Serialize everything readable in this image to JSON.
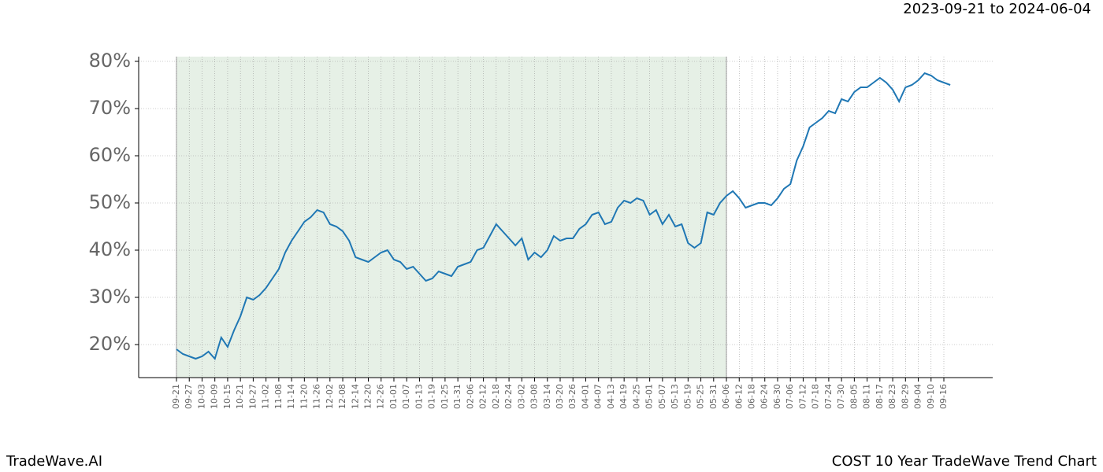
{
  "chart_data": {
    "type": "line",
    "date_range": "2023-09-21 to 2024-06-04",
    "brand": "TradeWave.AI",
    "footer_title": "COST 10 Year TradeWave Trend Chart",
    "categories": [
      "09-21",
      null,
      "09-27",
      null,
      "10-03",
      null,
      "10-09",
      null,
      "10-15",
      null,
      "10-21",
      null,
      "10-27",
      null,
      "11-02",
      null,
      "11-08",
      null,
      "11-14",
      null,
      "11-20",
      null,
      "11-26",
      null,
      "12-02",
      null,
      "12-08",
      null,
      "12-14",
      null,
      "12-20",
      null,
      "12-26",
      null,
      "01-01",
      null,
      "01-07",
      null,
      "01-13",
      null,
      "01-19",
      null,
      "01-25",
      null,
      "01-31",
      null,
      "02-06",
      null,
      "02-12",
      null,
      "02-18",
      null,
      "02-24",
      null,
      "03-02",
      null,
      "03-08",
      null,
      "03-14",
      null,
      "03-20",
      null,
      "03-26",
      null,
      "04-01",
      null,
      "04-07",
      null,
      "04-13",
      null,
      "04-19",
      null,
      "04-25",
      null,
      "05-01",
      null,
      "05-07",
      null,
      "05-13",
      null,
      "05-19",
      null,
      "05-25",
      null,
      "05-31",
      null,
      "06-06",
      null,
      "06-12",
      null,
      "06-18",
      null,
      "06-24",
      null,
      "06-30",
      null,
      "07-06",
      null,
      "07-12",
      null,
      "07-18",
      null,
      "07-24",
      null,
      "07-30",
      null,
      "08-05",
      null,
      "08-11",
      null,
      "08-17",
      null,
      "08-23",
      null,
      "08-29",
      null,
      "09-04",
      null,
      "09-10",
      null,
      "09-16",
      null
    ],
    "series": [
      {
        "color": "#1f77b4",
        "values": [
          19,
          18,
          17.5,
          17,
          17.5,
          18.5,
          17,
          21.5,
          19.5,
          23,
          26,
          30,
          29.5,
          30.5,
          32,
          34,
          36,
          39.5,
          42,
          44,
          46,
          47,
          48.5,
          48,
          45.5,
          45,
          44,
          42,
          38.5,
          38,
          37.5,
          38.5,
          39.5,
          40,
          38,
          37.5,
          36,
          36.5,
          35,
          33.5,
          34,
          35.5,
          35,
          34.5,
          36.5,
          37,
          37.5,
          40,
          40.5,
          43,
          45.5,
          44,
          42.5,
          41,
          42.5,
          38,
          39.5,
          38.5,
          40,
          43,
          42,
          42.5,
          42.5,
          44.5,
          45.5,
          47.5,
          48,
          45.5,
          46,
          49,
          50.5,
          50,
          51,
          50.5,
          47.5,
          48.5,
          45.5,
          47.5,
          45,
          45.5,
          41.5,
          40.5,
          41.5,
          48,
          47.5,
          50,
          51.5,
          52.5,
          51,
          49,
          49.5,
          50,
          50,
          49.5,
          51,
          53,
          54,
          59,
          62,
          66,
          67,
          68,
          69.5,
          69,
          72,
          71.5,
          73.5,
          74.5,
          74.5,
          75.5,
          76.5,
          75.5,
          74,
          71.5,
          74.5,
          75,
          76,
          77.5,
          77,
          76,
          75.5,
          75
        ]
      }
    ],
    "highlight": {
      "from": "09-21",
      "to": "06-06",
      "color": "#e6f0e6"
    },
    "ylim": [
      13,
      81
    ],
    "yticks": [
      {
        "value": 20,
        "label": "20%"
      },
      {
        "value": 30,
        "label": "30%"
      },
      {
        "value": 40,
        "label": "40%"
      },
      {
        "value": 50,
        "label": "50%"
      },
      {
        "value": 60,
        "label": "60%"
      },
      {
        "value": 70,
        "label": "70%"
      },
      {
        "value": 80,
        "label": "80%"
      }
    ],
    "grid": true
  }
}
